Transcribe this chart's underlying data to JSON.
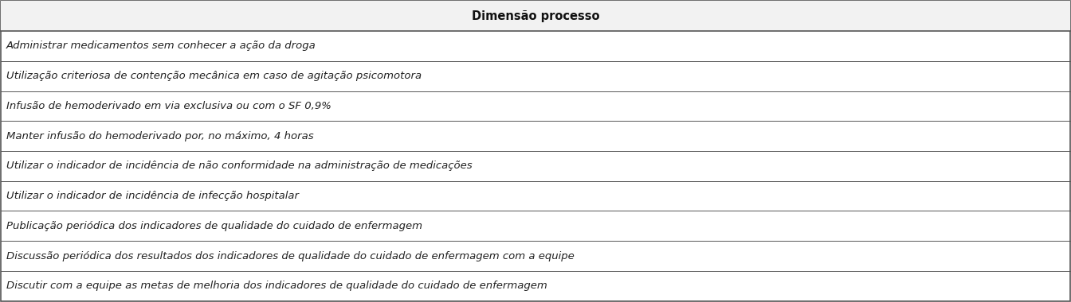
{
  "header": "Dimensão processo",
  "rows": [
    "Administrar medicamentos sem conhecer a ação da droga",
    "Utilização criteriosa de contenção mecânica em caso de agitação psicomotora",
    "Infusão de hemoderivado em via exclusiva ou com o SF 0,9%",
    "Manter infusão do hemoderivado por, no máximo, 4 horas",
    "Utilizar o indicador de incidência de não conformidade na administração de medicações",
    "Utilizar o indicador de incidência de infecção hospitalar",
    "Publicação periódica dos indicadores de qualidade do cuidado de enfermagem",
    "Discussão periódica dos resultados dos indicadores de qualidade do cuidado de enfermagem com a equipe",
    "Discutir com a equipe as metas de melhoria dos indicadores de qualidade do cuidado de enfermagem"
  ],
  "header_fontsize": 10.5,
  "row_fontsize": 9.5,
  "header_bg": "#f2f2f2",
  "row_bg": "#ffffff",
  "border_color": "#555555",
  "text_color": "#222222",
  "header_text_color": "#111111",
  "fig_width": 13.44,
  "fig_height": 3.8
}
